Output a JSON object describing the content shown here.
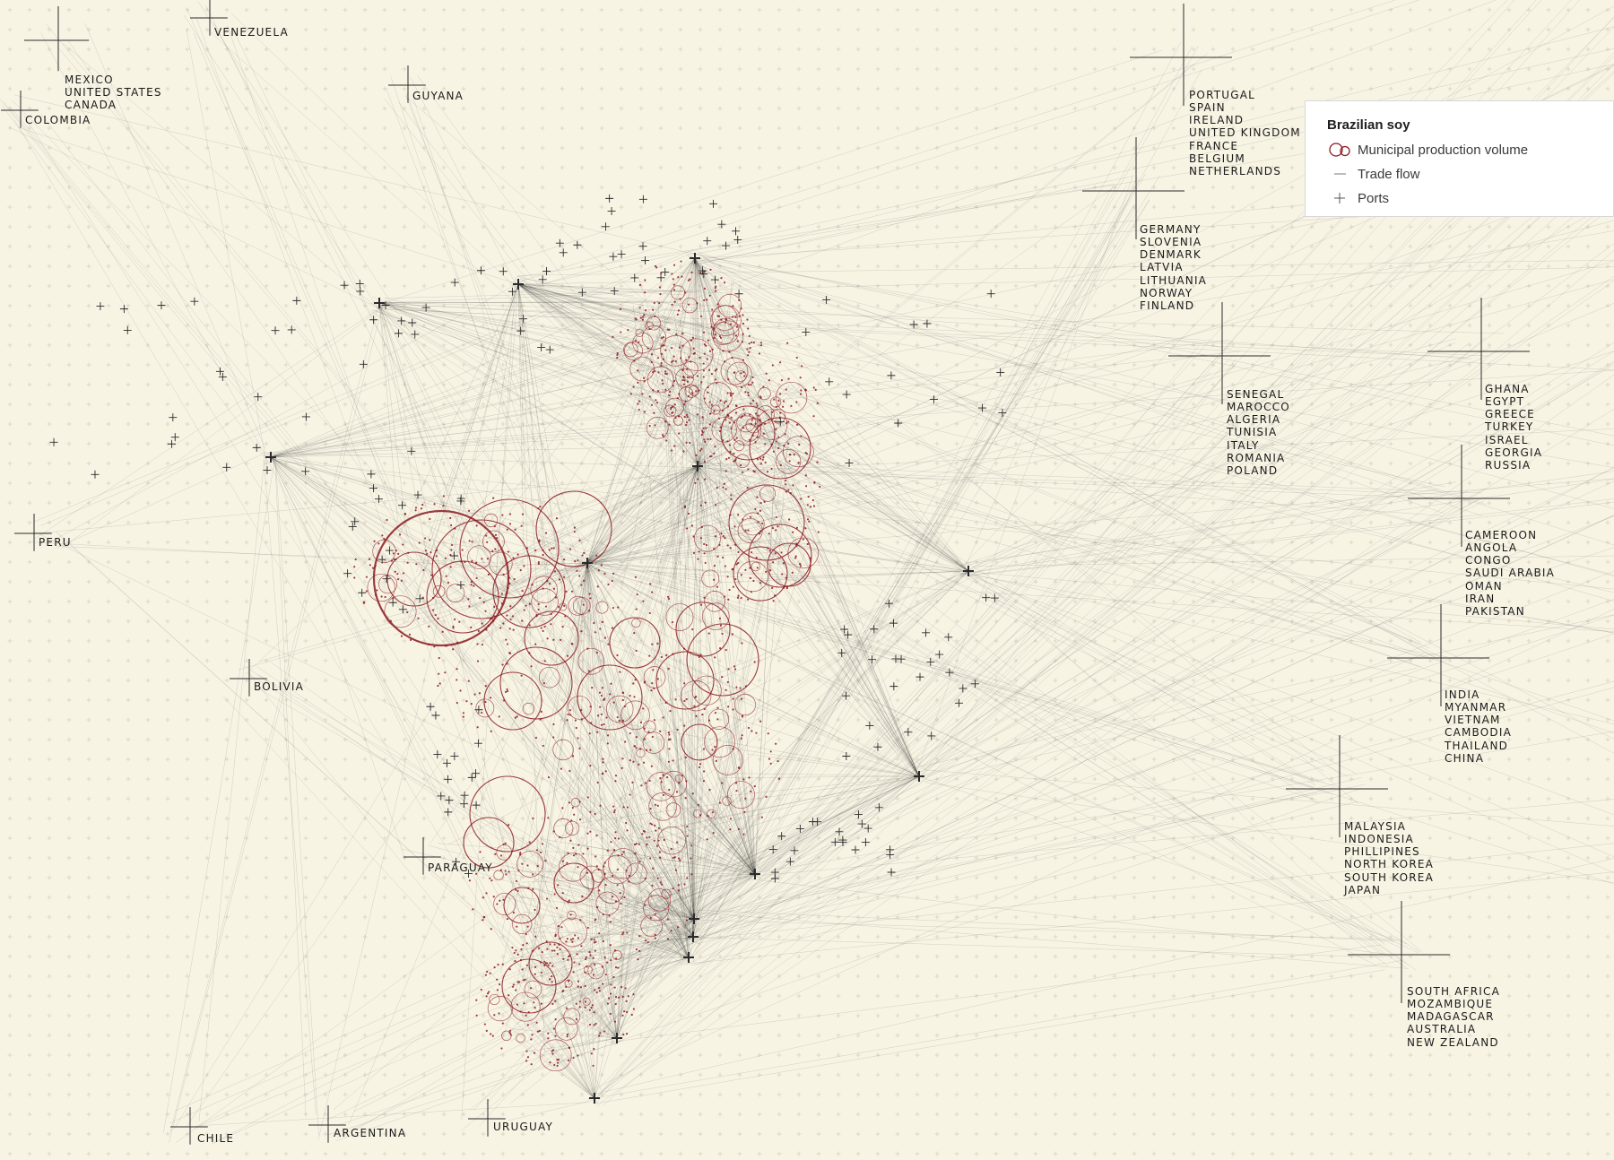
{
  "legend": {
    "title": "Brazilian soy",
    "items": [
      {
        "label": "Municipal production volume",
        "icon": "circle-icon"
      },
      {
        "label": "Trade flow",
        "icon": "line-icon"
      },
      {
        "label": "Ports",
        "icon": "plus-icon"
      }
    ]
  },
  "colors": {
    "background": "#f8f4e4",
    "production": "#8b1a22",
    "flow": "#6f6f6f",
    "port": "#2a2a2a"
  },
  "destinations": [
    {
      "id": "na",
      "lines": [
        "MEXICO",
        "UNITED STATES",
        "CANADA"
      ]
    },
    {
      "id": "venezuela",
      "lines": [
        "VENEZUELA"
      ]
    },
    {
      "id": "guyana",
      "lines": [
        "GUYANA"
      ]
    },
    {
      "id": "colombia",
      "lines": [
        "COLOMBIA"
      ]
    },
    {
      "id": "peru",
      "lines": [
        "PERU"
      ]
    },
    {
      "id": "bolivia",
      "lines": [
        "BOLIVIA"
      ]
    },
    {
      "id": "paraguay",
      "lines": [
        "PARAGUAY"
      ]
    },
    {
      "id": "chile",
      "lines": [
        "CHILE"
      ]
    },
    {
      "id": "argentina",
      "lines": [
        "ARGENTINA"
      ]
    },
    {
      "id": "uruguay",
      "lines": [
        "URUGUAY"
      ]
    },
    {
      "id": "west-europe",
      "lines": [
        "PORTUGAL",
        "SPAIN",
        "IRELAND",
        "UNITED KINGDOM",
        "FRANCE",
        "BELGIUM",
        "NETHERLANDS"
      ]
    },
    {
      "id": "north-europe",
      "lines": [
        "GERMANY",
        "SLOVENIA",
        "DENMARK",
        "LATVIA",
        "LITHUANIA",
        "NORWAY",
        "FINLAND"
      ]
    },
    {
      "id": "med",
      "lines": [
        "SENEGAL",
        "MAROCCO",
        "ALGERIA",
        "TUNISIA",
        "ITALY",
        "ROMANIA",
        "POLAND"
      ]
    },
    {
      "id": "east-med",
      "lines": [
        "GHANA",
        "EGYPT",
        "GREECE",
        "TURKEY",
        "ISRAEL",
        "GEORGIA",
        "RUSSIA"
      ]
    },
    {
      "id": "mideast",
      "lines": [
        "CAMEROON",
        "ANGOLA",
        "CONGO",
        "SAUDI ARABIA",
        "OMAN",
        "IRAN",
        "PAKISTAN"
      ]
    },
    {
      "id": "south-asia",
      "lines": [
        "INDIA",
        "MYANMAR",
        "VIETNAM",
        "CAMBODIA",
        "THAILAND",
        "CHINA"
      ]
    },
    {
      "id": "east-asia",
      "lines": [
        "MALAYSIA",
        "INDONESIA",
        "PHILLIPINES",
        "NORTH KOREA",
        "SOUTH KOREA",
        "JAPAN"
      ]
    },
    {
      "id": "oceania",
      "lines": [
        "SOUTH AFRICA",
        "MOZAMBIQUE",
        "MADAGASCAR",
        "AUSTRALIA",
        "NEW ZEALAND"
      ]
    }
  ]
}
